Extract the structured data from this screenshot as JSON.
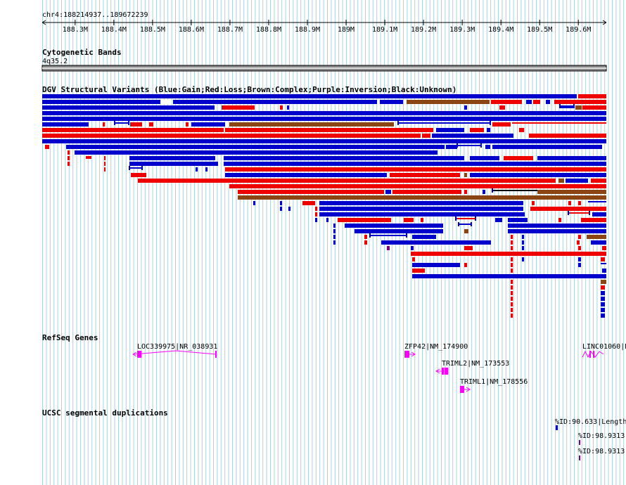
{
  "ruler": {
    "coords": "chr4:188214937..189672239",
    "ticks": [
      "188.3M",
      "188.4M",
      "188.5M",
      "188.6M",
      "188.7M",
      "188.8M",
      "188.9M",
      "189M",
      "189.1M",
      "189.2M",
      "189.3M",
      "189.4M",
      "189.5M",
      "189.6M"
    ]
  },
  "tracks": {
    "cyto": {
      "title": "Cytogenetic Bands",
      "band": "4q35.2"
    },
    "dgv": {
      "title": "DGV Structural Variants (Blue:Gain;Red:Loss;Brown:Complex;Purple:Inversion;Black:Unknown)"
    },
    "refseq": {
      "title": "RefSeq Genes"
    },
    "segdup": {
      "title": "UCSC segmental duplications"
    }
  },
  "genes": [
    {
      "label": "LOC339975|NR_038931"
    },
    {
      "label": "ZFP42|NM_174900"
    },
    {
      "label": "TRIML2|NM_173553"
    },
    {
      "label": "TRIML1|NM_178556"
    },
    {
      "label": "LINC01060|N"
    }
  ],
  "segdups": [
    {
      "label": "%ID:90.633|Length"
    },
    {
      "label": "%ID:98.9313"
    },
    {
      "label": "%ID:98.9313"
    }
  ],
  "colors": {
    "gain": "#0000cc",
    "loss": "#ee0000",
    "complex": "#8b4513",
    "inversion": "#800080",
    "gene": "#ff00ff",
    "grid": "#aad4e0"
  }
}
